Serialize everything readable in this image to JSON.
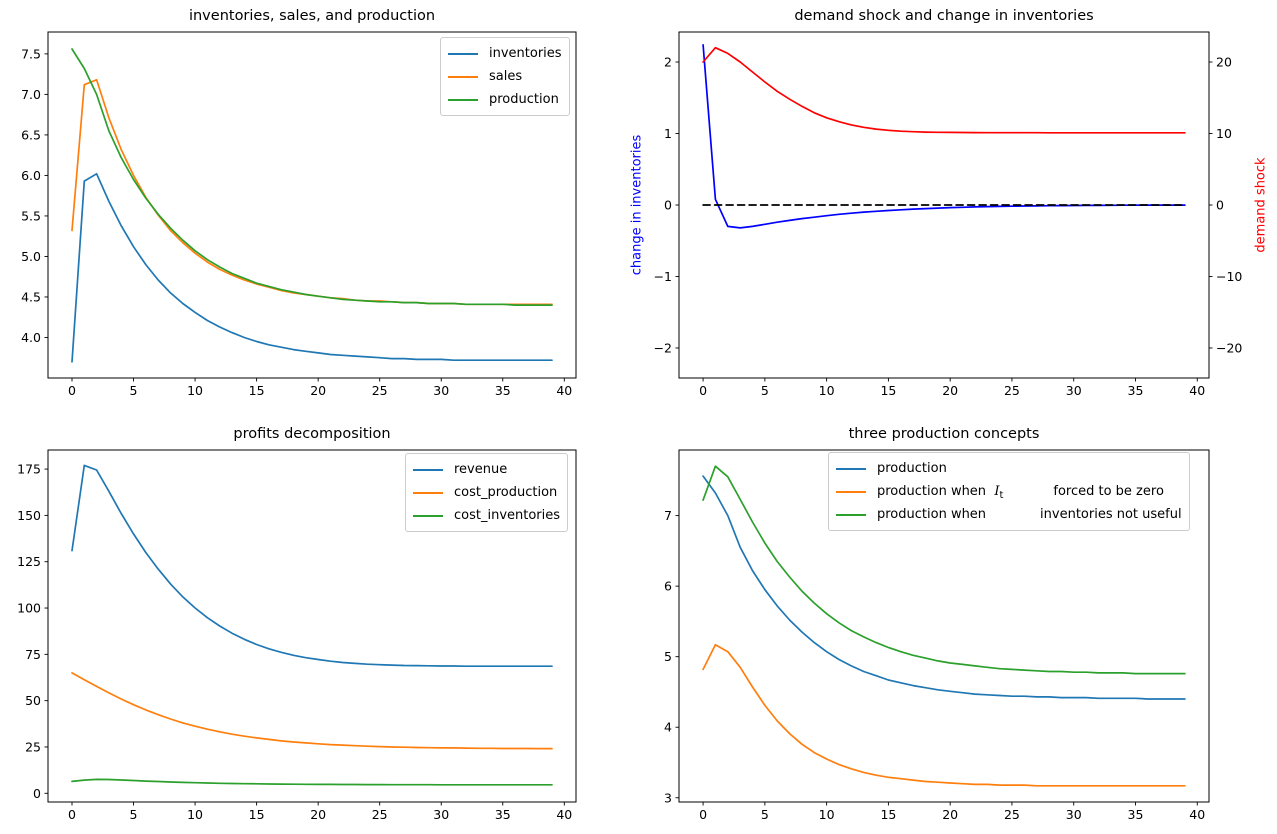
{
  "figure": {
    "background": "#ffffff"
  },
  "chart_data": [
    {
      "type": "line",
      "title": "inventories, sales, and production",
      "x": [
        0,
        1,
        2,
        3,
        4,
        5,
        6,
        7,
        8,
        9,
        10,
        11,
        12,
        13,
        14,
        15,
        16,
        17,
        18,
        19,
        20,
        21,
        22,
        23,
        24,
        25,
        26,
        27,
        28,
        29,
        30,
        31,
        32,
        33,
        34,
        35,
        36,
        37,
        38,
        39
      ],
      "xlim": [
        -1.95,
        40.95
      ],
      "ylim": [
        3.5,
        7.77
      ],
      "xticks": [
        0,
        5,
        10,
        15,
        20,
        25,
        30,
        35,
        40
      ],
      "xtick_labels": [
        "0",
        "5",
        "10",
        "15",
        "20",
        "25",
        "30",
        "35",
        "40"
      ],
      "yticks": [
        4.0,
        4.5,
        5.0,
        5.5,
        6.0,
        6.5,
        7.0,
        7.5
      ],
      "ytick_labels": [
        "4.0",
        "4.5",
        "5.0",
        "5.5",
        "6.0",
        "6.5",
        "7.0",
        "7.5"
      ],
      "grid": false,
      "legend_loc": "upper right",
      "legend": {
        "items": [
          {
            "color": "#1f77b4",
            "segments": [
              {
                "t": "inventories"
              }
            ]
          },
          {
            "color": "#ff7f0e",
            "segments": [
              {
                "t": "sales"
              }
            ]
          },
          {
            "color": "#2ca02c",
            "segments": [
              {
                "t": "production"
              }
            ]
          }
        ]
      },
      "series": [
        {
          "name": "inventories",
          "color": "#1f77b4",
          "values": [
            3.7,
            5.93,
            6.02,
            5.68,
            5.38,
            5.12,
            4.9,
            4.71,
            4.55,
            4.42,
            4.31,
            4.21,
            4.13,
            4.06,
            4.0,
            3.95,
            3.91,
            3.88,
            3.85,
            3.83,
            3.81,
            3.79,
            3.78,
            3.77,
            3.76,
            3.75,
            3.74,
            3.74,
            3.73,
            3.73,
            3.73,
            3.72,
            3.72,
            3.72,
            3.72,
            3.72,
            3.72,
            3.72,
            3.72,
            3.72
          ]
        },
        {
          "name": "sales",
          "color": "#ff7f0e",
          "values": [
            5.32,
            7.12,
            7.18,
            6.71,
            6.32,
            6.0,
            5.73,
            5.51,
            5.32,
            5.17,
            5.04,
            4.93,
            4.84,
            4.77,
            4.71,
            4.66,
            4.62,
            4.58,
            4.55,
            4.53,
            4.51,
            4.49,
            4.48,
            4.46,
            4.45,
            4.45,
            4.44,
            4.43,
            4.43,
            4.42,
            4.42,
            4.42,
            4.41,
            4.41,
            4.41,
            4.41,
            4.41,
            4.41,
            4.41,
            4.41
          ]
        },
        {
          "name": "production",
          "color": "#2ca02c",
          "values": [
            7.56,
            7.32,
            7.0,
            6.55,
            6.22,
            5.95,
            5.72,
            5.52,
            5.35,
            5.2,
            5.07,
            4.96,
            4.87,
            4.79,
            4.73,
            4.67,
            4.63,
            4.59,
            4.56,
            4.53,
            4.51,
            4.49,
            4.47,
            4.46,
            4.45,
            4.44,
            4.44,
            4.43,
            4.43,
            4.42,
            4.42,
            4.42,
            4.41,
            4.41,
            4.41,
            4.41,
            4.4,
            4.4,
            4.4,
            4.4
          ]
        }
      ]
    },
    {
      "type": "line",
      "title": "demand shock and change in inventories",
      "x": [
        0,
        1,
        2,
        3,
        4,
        5,
        6,
        7,
        8,
        9,
        10,
        11,
        12,
        13,
        14,
        15,
        16,
        17,
        18,
        19,
        20,
        21,
        22,
        23,
        24,
        25,
        26,
        27,
        28,
        29,
        30,
        31,
        32,
        33,
        34,
        35,
        36,
        37,
        38,
        39
      ],
      "xlim": [
        -1.95,
        40.95
      ],
      "ylim": [
        -2.42,
        2.42
      ],
      "xticks": [
        0,
        5,
        10,
        15,
        20,
        25,
        30,
        35,
        40
      ],
      "xtick_labels": [
        "0",
        "5",
        "10",
        "15",
        "20",
        "25",
        "30",
        "35",
        "40"
      ],
      "yticks": [
        -2,
        -1,
        0,
        1,
        2
      ],
      "ytick_labels": [
        "−2",
        "−1",
        "0",
        "1",
        "2"
      ],
      "ylabel_left": {
        "text": "change in inventories",
        "color": "#0000ff"
      },
      "ylabel_right": {
        "text": "demand shock",
        "color": "#ff0000"
      },
      "axis2": {
        "ylim": [
          -24.2,
          24.2
        ],
        "yticks": [
          -20,
          -10,
          0,
          10,
          20
        ],
        "ytick_labels": [
          "−20",
          "−10",
          "0",
          "10",
          "20"
        ]
      },
      "grid": false,
      "series": [
        {
          "name": "change in inventories",
          "color": "#0000ff",
          "values": [
            2.24,
            0.08,
            -0.3,
            -0.32,
            -0.3,
            -0.27,
            -0.24,
            -0.215,
            -0.19,
            -0.17,
            -0.15,
            -0.13,
            -0.115,
            -0.1,
            -0.088,
            -0.077,
            -0.067,
            -0.058,
            -0.05,
            -0.043,
            -0.037,
            -0.032,
            -0.027,
            -0.023,
            -0.02,
            -0.017,
            -0.014,
            -0.012,
            -0.01,
            -0.008,
            -0.007,
            -0.006,
            -0.005,
            -0.004,
            -0.003,
            -0.003,
            -0.002,
            -0.002,
            -0.001,
            -0.001
          ]
        },
        {
          "name": "zero line",
          "color": "#000000",
          "dash": true,
          "const": 0
        },
        {
          "name": "demand shock",
          "color": "#ff0000",
          "axis": 2,
          "values": [
            20.0,
            22.0,
            21.2,
            20.0,
            18.6,
            17.2,
            15.9,
            14.8,
            13.8,
            12.9,
            12.2,
            11.65,
            11.2,
            10.87,
            10.62,
            10.45,
            10.33,
            10.25,
            10.2,
            10.17,
            10.15,
            10.14,
            10.13,
            10.12,
            10.12,
            10.11,
            10.11,
            10.11,
            10.1,
            10.1,
            10.1,
            10.1,
            10.1,
            10.1,
            10.1,
            10.1,
            10.1,
            10.1,
            10.1,
            10.1
          ]
        }
      ]
    },
    {
      "type": "line",
      "title": "profits decomposition",
      "x": [
        0,
        1,
        2,
        3,
        4,
        5,
        6,
        7,
        8,
        9,
        10,
        11,
        12,
        13,
        14,
        15,
        16,
        17,
        18,
        19,
        20,
        21,
        22,
        23,
        24,
        25,
        26,
        27,
        28,
        29,
        30,
        31,
        32,
        33,
        34,
        35,
        36,
        37,
        38,
        39
      ],
      "xlim": [
        -1.95,
        40.95
      ],
      "ylim": [
        -4.7,
        185.3
      ],
      "xticks": [
        0,
        5,
        10,
        15,
        20,
        25,
        30,
        35,
        40
      ],
      "xtick_labels": [
        "0",
        "5",
        "10",
        "15",
        "20",
        "25",
        "30",
        "35",
        "40"
      ],
      "yticks": [
        0,
        25,
        50,
        75,
        100,
        125,
        150,
        175
      ],
      "ytick_labels": [
        "0",
        "25",
        "50",
        "75",
        "100",
        "125",
        "150",
        "175"
      ],
      "grid": false,
      "legend_loc": "upper right",
      "legend": {
        "items": [
          {
            "color": "#1f77b4",
            "segments": [
              {
                "t": "revenue"
              }
            ]
          },
          {
            "color": "#ff7f0e",
            "segments": [
              {
                "t": "cost_production"
              }
            ]
          },
          {
            "color": "#2ca02c",
            "segments": [
              {
                "t": "cost_inventories"
              }
            ]
          }
        ]
      },
      "series": [
        {
          "name": "revenue",
          "color": "#1f77b4",
          "values": [
            131,
            177,
            174.5,
            163,
            151,
            140,
            130,
            121,
            113,
            106,
            100,
            94.8,
            90.3,
            86.4,
            83.1,
            80.3,
            78.0,
            76.1,
            74.5,
            73.2,
            72.2,
            71.3,
            70.6,
            70.1,
            69.7,
            69.4,
            69.2,
            69.0,
            68.9,
            68.8,
            68.7,
            68.7,
            68.6,
            68.6,
            68.6,
            68.6,
            68.6,
            68.6,
            68.6,
            68.6
          ]
        },
        {
          "name": "cost_production",
          "color": "#ff7f0e",
          "values": [
            65,
            61.3,
            57.7,
            54.2,
            50.9,
            47.8,
            45.0,
            42.4,
            40.1,
            38.0,
            36.2,
            34.6,
            33.2,
            31.9,
            30.8,
            29.9,
            29.1,
            28.3,
            27.7,
            27.2,
            26.7,
            26.3,
            26.0,
            25.7,
            25.4,
            25.2,
            25.0,
            24.9,
            24.7,
            24.6,
            24.5,
            24.5,
            24.4,
            24.3,
            24.3,
            24.2,
            24.2,
            24.2,
            24.1,
            24.1
          ]
        },
        {
          "name": "cost_inventories",
          "color": "#2ca02c",
          "values": [
            6.4,
            7.1,
            7.5,
            7.45,
            7.2,
            6.9,
            6.6,
            6.35,
            6.1,
            5.9,
            5.72,
            5.56,
            5.42,
            5.3,
            5.2,
            5.11,
            5.03,
            4.97,
            4.91,
            4.86,
            4.82,
            4.78,
            4.75,
            4.72,
            4.7,
            4.68,
            4.66,
            4.65,
            4.63,
            4.62,
            4.61,
            4.6,
            4.6,
            4.59,
            4.59,
            4.58,
            4.58,
            4.58,
            4.57,
            4.57
          ]
        }
      ]
    },
    {
      "type": "line",
      "title": "three production concepts",
      "x": [
        0,
        1,
        2,
        3,
        4,
        5,
        6,
        7,
        8,
        9,
        10,
        11,
        12,
        13,
        14,
        15,
        16,
        17,
        18,
        19,
        20,
        21,
        22,
        23,
        24,
        25,
        26,
        27,
        28,
        29,
        30,
        31,
        32,
        33,
        34,
        35,
        36,
        37,
        38,
        39
      ],
      "xlim": [
        -1.95,
        40.95
      ],
      "ylim": [
        2.94,
        7.93
      ],
      "xticks": [
        0,
        5,
        10,
        15,
        20,
        25,
        30,
        35,
        40
      ],
      "xtick_labels": [
        "0",
        "5",
        "10",
        "15",
        "20",
        "25",
        "30",
        "35",
        "40"
      ],
      "yticks": [
        3,
        4,
        5,
        6,
        7
      ],
      "ytick_labels": [
        "3",
        "4",
        "5",
        "6",
        "7"
      ],
      "grid": false,
      "legend_loc": "upper left",
      "legend": {
        "items": [
          {
            "color": "#1f77b4",
            "segments": [
              {
                "t": "production"
              }
            ]
          },
          {
            "color": "#ff7f0e",
            "segments": [
              {
                "t": "production when  "
              },
              {
                "t": "I",
                "k": "mi"
              },
              {
                "t": "t",
                "k": "msub"
              },
              {
                "k": "gap",
                "w": 50
              },
              {
                "t": "forced to be zero"
              }
            ]
          },
          {
            "color": "#2ca02c",
            "segments": [
              {
                "t": "production when"
              },
              {
                "k": "gap",
                "w": 54
              },
              {
                "t": "inventories not useful"
              }
            ]
          }
        ]
      },
      "series": [
        {
          "name": "production",
          "color": "#1f77b4",
          "values": [
            7.56,
            7.32,
            7.0,
            6.55,
            6.22,
            5.95,
            5.72,
            5.52,
            5.35,
            5.2,
            5.07,
            4.96,
            4.87,
            4.79,
            4.73,
            4.67,
            4.63,
            4.59,
            4.56,
            4.53,
            4.51,
            4.49,
            4.47,
            4.46,
            4.45,
            4.44,
            4.44,
            4.43,
            4.43,
            4.42,
            4.42,
            4.42,
            4.41,
            4.41,
            4.41,
            4.41,
            4.4,
            4.4,
            4.4,
            4.4
          ]
        },
        {
          "name": "production when It forced to be zero",
          "color": "#ff7f0e",
          "values": [
            4.82,
            5.17,
            5.07,
            4.85,
            4.57,
            4.31,
            4.09,
            3.91,
            3.76,
            3.64,
            3.55,
            3.47,
            3.41,
            3.36,
            3.32,
            3.29,
            3.27,
            3.25,
            3.23,
            3.22,
            3.21,
            3.2,
            3.19,
            3.19,
            3.18,
            3.18,
            3.18,
            3.17,
            3.17,
            3.17,
            3.17,
            3.17,
            3.17,
            3.17,
            3.17,
            3.17,
            3.17,
            3.17,
            3.17,
            3.17
          ]
        },
        {
          "name": "production when inventories not useful",
          "color": "#2ca02c",
          "values": [
            7.22,
            7.7,
            7.55,
            7.23,
            6.91,
            6.61,
            6.35,
            6.13,
            5.93,
            5.76,
            5.61,
            5.48,
            5.37,
            5.28,
            5.2,
            5.13,
            5.07,
            5.02,
            4.98,
            4.94,
            4.91,
            4.89,
            4.87,
            4.85,
            4.83,
            4.82,
            4.81,
            4.8,
            4.79,
            4.79,
            4.78,
            4.78,
            4.77,
            4.77,
            4.77,
            4.76,
            4.76,
            4.76,
            4.76,
            4.76
          ]
        }
      ]
    }
  ]
}
